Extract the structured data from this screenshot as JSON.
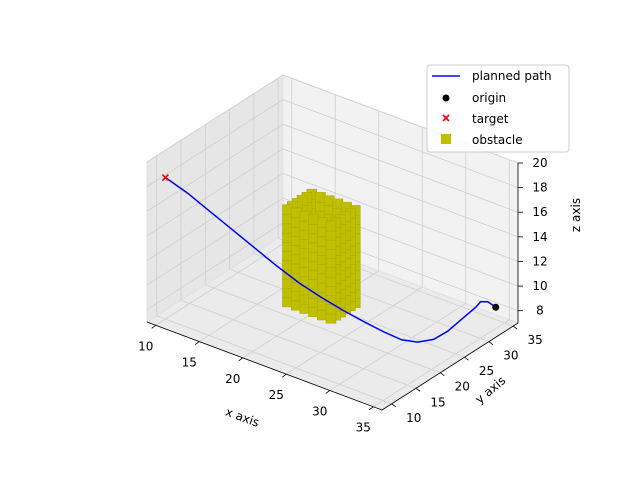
{
  "chart_data": {
    "type": "line3d",
    "xlabel": "x axis",
    "ylabel": "y axis",
    "zlabel": "z axis",
    "xlim": [
      9,
      36
    ],
    "ylim": [
      8,
      36
    ],
    "zlim": [
      7,
      20
    ],
    "x_ticks": [
      "10",
      "15",
      "20",
      "25",
      "30",
      "35"
    ],
    "y_ticks": [
      "10",
      "15",
      "20",
      "25",
      "30",
      "35"
    ],
    "z_ticks": [
      "8",
      "10",
      "12",
      "14",
      "16",
      "18",
      "20"
    ],
    "grid": true,
    "legend_position": "top-right",
    "colors": {
      "path": "#0000ff",
      "origin": "#000000",
      "target": "#ff0000",
      "obstacle": "#bfbf00"
    },
    "series": [
      {
        "name": "planned path",
        "kind": "line",
        "points": [
          [
            10,
            10,
            18.5
          ],
          [
            12,
            11,
            17.5
          ],
          [
            14,
            12,
            16.3
          ],
          [
            16,
            13,
            15.1
          ],
          [
            18,
            14,
            13.9
          ],
          [
            20,
            15,
            12.7
          ],
          [
            22,
            16,
            11.6
          ],
          [
            24,
            17,
            10.7
          ],
          [
            26,
            18,
            9.9
          ],
          [
            28,
            19,
            9.2
          ],
          [
            29.5,
            20,
            8.6
          ],
          [
            31,
            21,
            8.1
          ],
          [
            32,
            22.5,
            7.8
          ],
          [
            33,
            24,
            7.9
          ],
          [
            33.5,
            26,
            8.2
          ],
          [
            34,
            28,
            8.8
          ],
          [
            34.5,
            30,
            9.4
          ],
          [
            34.5,
            31,
            9.6
          ],
          [
            34.2,
            33,
            9.0
          ],
          [
            34,
            35,
            8.0
          ]
        ]
      },
      {
        "name": "origin",
        "kind": "marker",
        "marker": "circle",
        "points": [
          [
            34,
            35,
            8.0
          ]
        ]
      },
      {
        "name": "target",
        "kind": "marker",
        "marker": "x",
        "points": [
          [
            10,
            10,
            18.5
          ]
        ]
      },
      {
        "name": "obstacle",
        "kind": "voxels",
        "marker": "square",
        "box": {
          "x": [
            19,
            24
          ],
          "y": [
            19,
            24
          ],
          "z": [
            8.5,
            16
          ]
        }
      }
    ]
  }
}
